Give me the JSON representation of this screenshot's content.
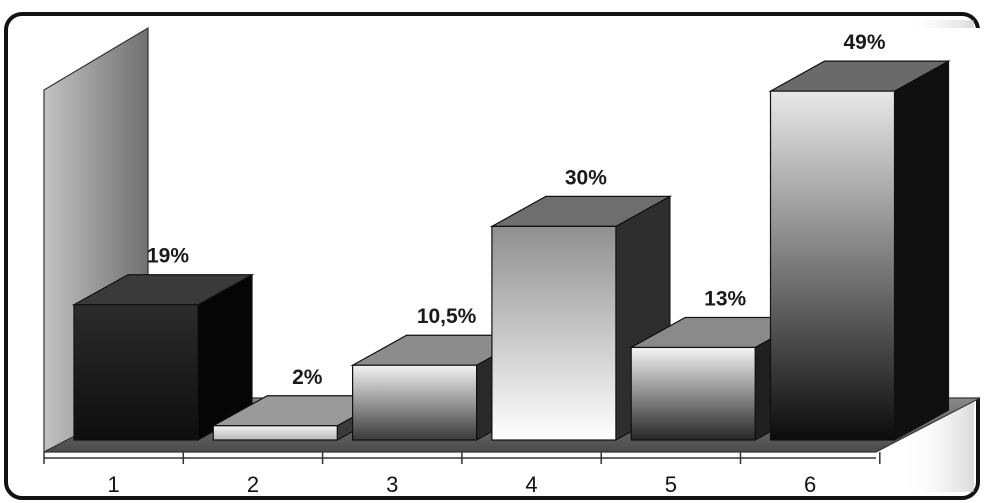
{
  "chart_data": {
    "type": "bar",
    "style": "3d-column",
    "categories": [
      "1",
      "2",
      "3",
      "4",
      "5",
      "6"
    ],
    "values": [
      19,
      2,
      10.5,
      30,
      13,
      49
    ],
    "value_labels": [
      "19%",
      "2%",
      "10,5%",
      "30%",
      "13%",
      "49%"
    ],
    "title": "",
    "xlabel": "",
    "ylabel": "",
    "ylim": [
      0,
      50
    ],
    "grid": false,
    "legend": "none",
    "bar_styles": [
      {
        "face": [
          "#2c2c2c",
          "#0e0e0e"
        ],
        "top": "#3a3a3a",
        "side": "#050505"
      },
      {
        "face": [
          "#f4f4f4",
          "#b5b5b5"
        ],
        "top": "#9a9a9a",
        "side": "#3a3a3a"
      },
      {
        "face": [
          "#f2f2f2",
          "#3a3a3a"
        ],
        "top": "#8c8c8c",
        "side": "#2a2a2a"
      },
      {
        "face": [
          "#8f8f8f",
          "#ffffff"
        ],
        "top": "#6e6e6e",
        "side": "#2e2e2e"
      },
      {
        "face": [
          "#f4f4f4",
          "#262626"
        ],
        "top": "#8a8a8a",
        "side": "#202020"
      },
      {
        "face": [
          "#e8e8e8",
          "#0c0c0c"
        ],
        "top": "#6a6a6a",
        "side": "#101010"
      }
    ]
  }
}
